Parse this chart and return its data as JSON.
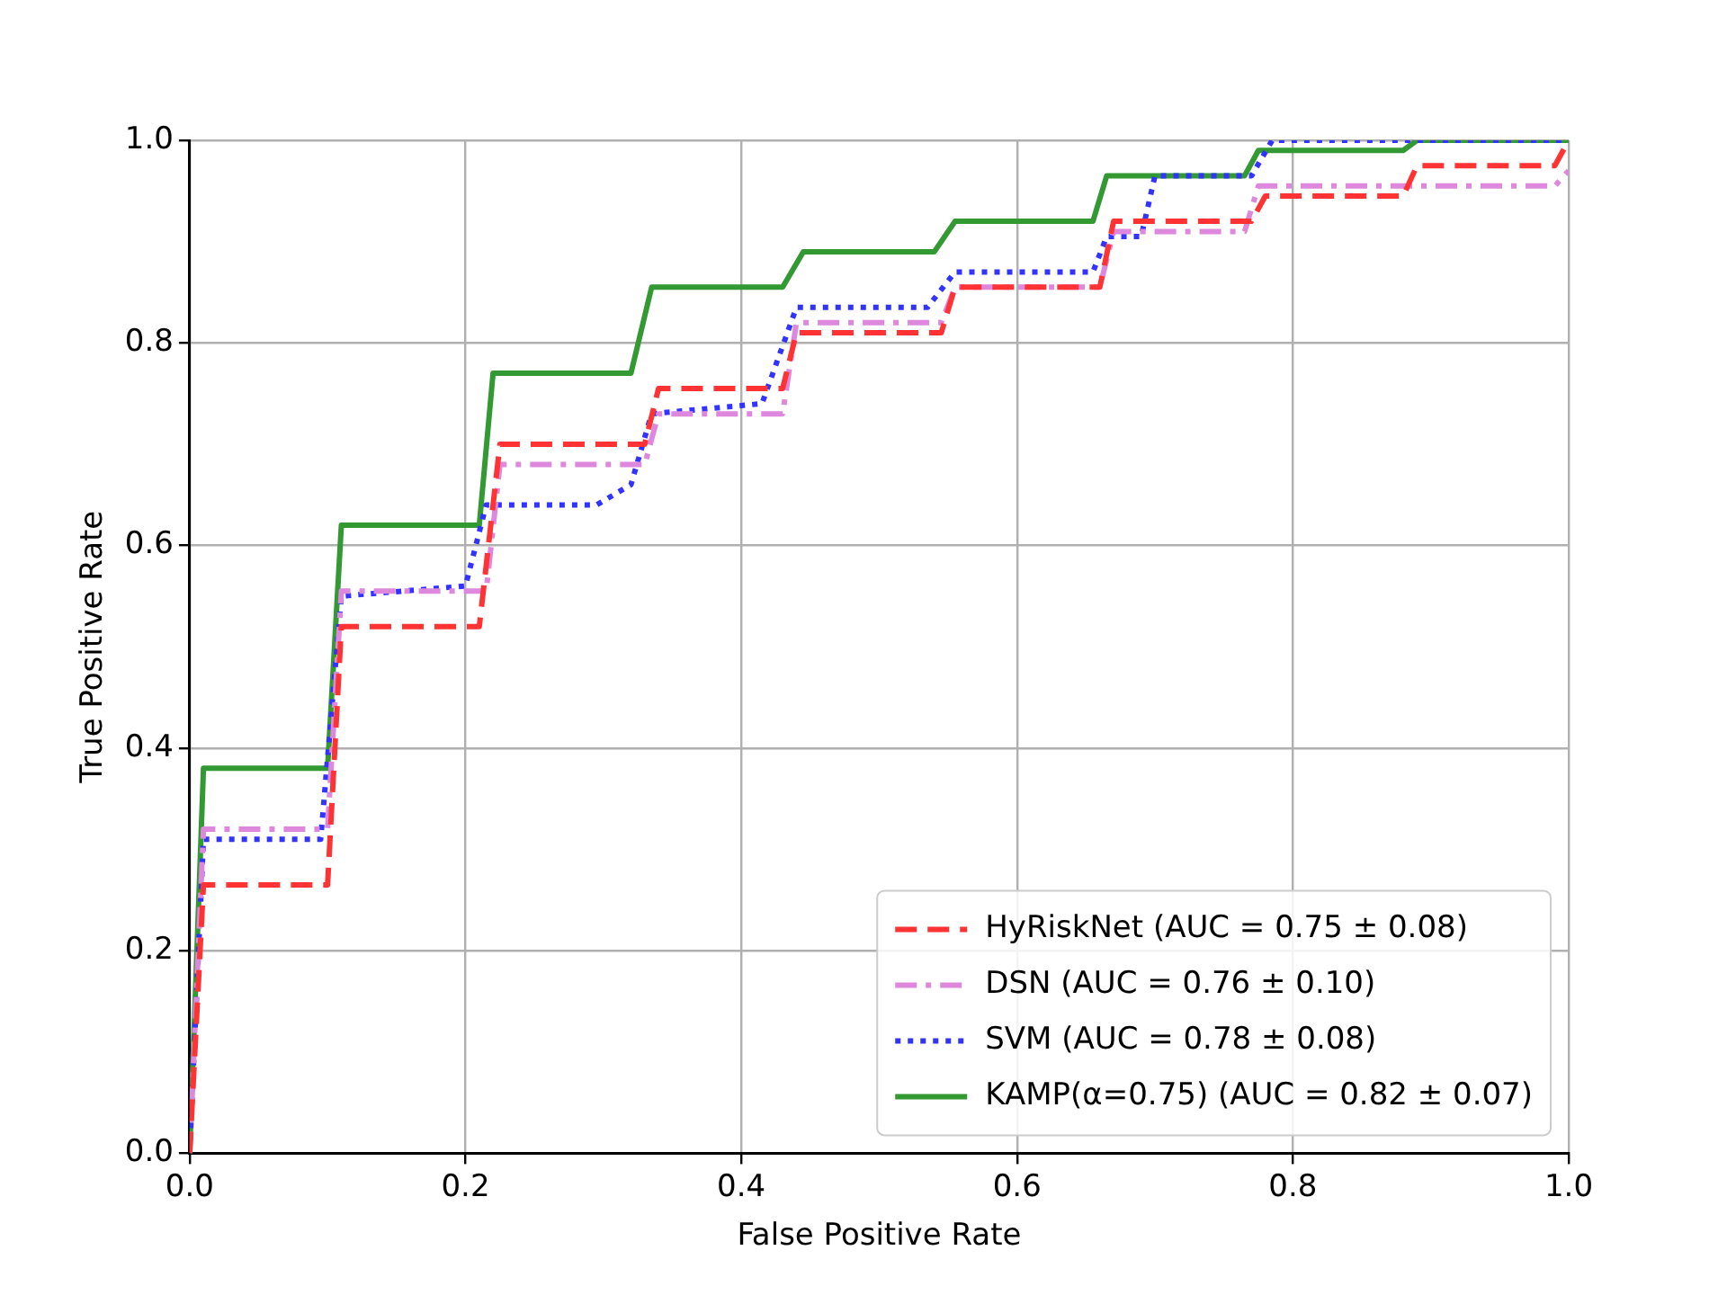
{
  "chart_data": {
    "type": "line",
    "xlabel": "False Positive Rate",
    "ylabel": "True Positive Rate",
    "xlim": [
      0,
      1
    ],
    "ylim": [
      0,
      1
    ],
    "xticks": [
      {
        "value": 0,
        "label": "0.0"
      },
      {
        "value": 0.2,
        "label": "0.2"
      },
      {
        "value": 0.4,
        "label": "0.4"
      },
      {
        "value": 0.6,
        "label": "0.6"
      },
      {
        "value": 0.8,
        "label": "0.8"
      },
      {
        "value": 1,
        "label": "1.0"
      }
    ],
    "yticks": [
      {
        "value": 0,
        "label": "0.0"
      },
      {
        "value": 0.2,
        "label": "0.2"
      },
      {
        "value": 0.4,
        "label": "0.4"
      },
      {
        "value": 0.6,
        "label": "0.6"
      },
      {
        "value": 0.8,
        "label": "0.8"
      },
      {
        "value": 1,
        "label": "1.0"
      }
    ],
    "grid": true,
    "legend": "bottom right",
    "marker": "none",
    "series": [
      {
        "name": "HyRiskNet (AUC = 0.75 ± 0.08)",
        "color": "#ff3333",
        "line_style": "dashed",
        "x": [
          0,
          0.01,
          0.1,
          0.11,
          0.21,
          0.225,
          0.33,
          0.34,
          0.43,
          0.44,
          0.545,
          0.555,
          0.66,
          0.67,
          0.77,
          0.78,
          0.88,
          0.89,
          0.99,
          1
        ],
        "values": [
          0,
          0.265,
          0.265,
          0.52,
          0.52,
          0.7,
          0.7,
          0.755,
          0.755,
          0.81,
          0.81,
          0.855,
          0.855,
          0.92,
          0.92,
          0.945,
          0.945,
          0.975,
          0.975,
          1
        ]
      },
      {
        "name": "DSN (AUC = 0.76 ± 0.10)",
        "color": "#dd88dd",
        "line_style": "dashdot",
        "x": [
          0,
          0.01,
          0.1,
          0.11,
          0.215,
          0.225,
          0.33,
          0.34,
          0.43,
          0.44,
          0.545,
          0.555,
          0.66,
          0.67,
          0.765,
          0.775,
          0.99,
          1
        ],
        "values": [
          0,
          0.32,
          0.32,
          0.555,
          0.555,
          0.68,
          0.68,
          0.73,
          0.73,
          0.82,
          0.82,
          0.855,
          0.855,
          0.91,
          0.91,
          0.955,
          0.955,
          0.97
        ]
      },
      {
        "name": "SVM (AUC = 0.78 ± 0.08)",
        "color": "#3333ff",
        "line_style": "dotted",
        "x": [
          0,
          0.01,
          0.095,
          0.11,
          0.2,
          0.215,
          0.295,
          0.32,
          0.335,
          0.415,
          0.44,
          0.535,
          0.555,
          0.655,
          0.665,
          0.69,
          0.7,
          0.77,
          0.785,
          1
        ],
        "values": [
          0,
          0.31,
          0.31,
          0.55,
          0.56,
          0.64,
          0.64,
          0.66,
          0.73,
          0.74,
          0.835,
          0.835,
          0.87,
          0.87,
          0.905,
          0.905,
          0.965,
          0.965,
          1,
          1
        ]
      },
      {
        "name": "KAMP(α=0.75) (AUC = 0.82 ± 0.07)",
        "color": "#339933",
        "line_style": "solid",
        "x": [
          0,
          0.01,
          0.1,
          0.11,
          0.21,
          0.22,
          0.32,
          0.335,
          0.43,
          0.445,
          0.54,
          0.555,
          0.655,
          0.665,
          0.765,
          0.775,
          0.88,
          0.89,
          1
        ],
        "values": [
          0,
          0.38,
          0.38,
          0.62,
          0.62,
          0.77,
          0.77,
          0.855,
          0.855,
          0.89,
          0.89,
          0.92,
          0.92,
          0.965,
          0.965,
          0.99,
          0.99,
          1,
          1
        ]
      }
    ]
  }
}
